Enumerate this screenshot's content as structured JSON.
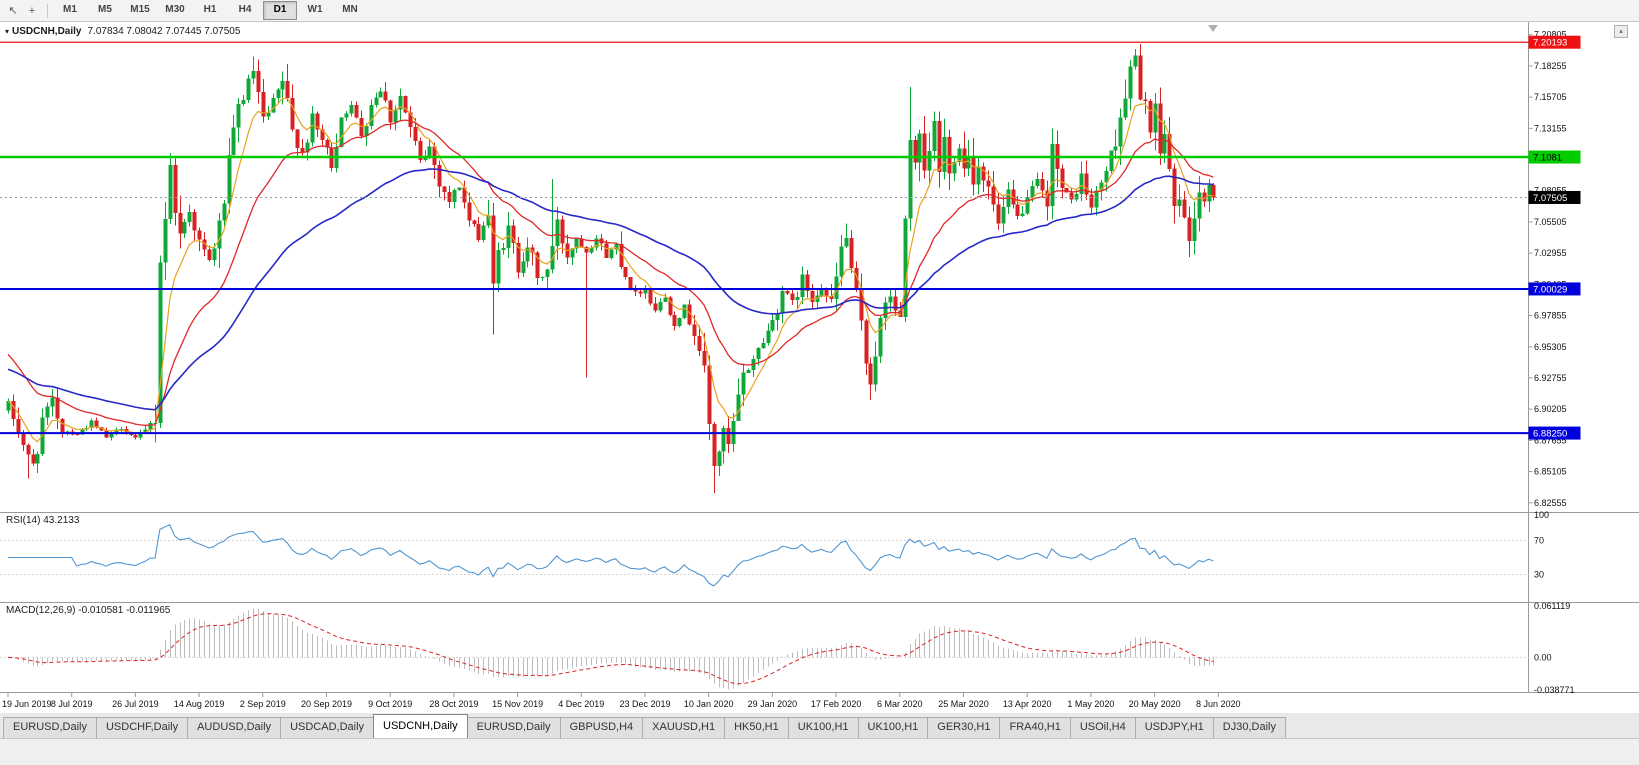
{
  "toolbar": {
    "icons": [
      {
        "name": "chart-cursor-icon",
        "glyph": "↖"
      },
      {
        "name": "crosshair-icon",
        "glyph": "+"
      }
    ],
    "timeframes": [
      "M1",
      "M5",
      "M15",
      "M30",
      "H1",
      "H4",
      "D1",
      "W1",
      "MN"
    ],
    "active_timeframe": "D1"
  },
  "chart": {
    "symbol_title": "USDCNH,Daily",
    "ohlc": "7.07834 7.08042 7.07445 7.07505",
    "menu_glyph": "▾",
    "scroll_glyph": "▴"
  },
  "rsi_panel": {
    "label": "RSI(14) 43.2133"
  },
  "macd_panel": {
    "label": "MACD(12,26,9) -0.010581 -0.011965"
  },
  "tabs": [
    {
      "label": "EURUSD,Daily",
      "active": false
    },
    {
      "label": "USDCHF,Daily",
      "active": false
    },
    {
      "label": "AUDUSD,Daily",
      "active": false
    },
    {
      "label": "USDCAD,Daily",
      "active": false
    },
    {
      "label": "USDCNH,Daily",
      "active": true
    },
    {
      "label": "EURUSD,Daily",
      "active": false
    },
    {
      "label": "GBPUSD,H4",
      "active": false
    },
    {
      "label": "XAUUSD,H1",
      "active": false
    },
    {
      "label": "HK50,H1",
      "active": false
    },
    {
      "label": "UK100,H1",
      "active": false
    },
    {
      "label": "UK100,H1",
      "active": false
    },
    {
      "label": "GER30,H1",
      "active": false
    },
    {
      "label": "FRA40,H1",
      "active": false
    },
    {
      "label": "USOil,H4",
      "active": false
    },
    {
      "label": "USDJPY,H1",
      "active": false
    },
    {
      "label": "DJ30,Daily",
      "active": false
    }
  ],
  "chart_data": {
    "type": "candlestick",
    "symbol": "USDCNH",
    "timeframe": "Daily",
    "num_candles": 247,
    "candles_per_tick": 13,
    "x_tick_labels": [
      "19 Jun 2019",
      "8 Jul 2019",
      "26 Jul 2019",
      "14 Aug 2019",
      "2 Sep 2019",
      "20 Sep 2019",
      "9 Oct 2019",
      "28 Oct 2019",
      "15 Nov 2019",
      "4 Dec 2019",
      "23 Dec 2019",
      "10 Jan 2020",
      "29 Jan 2020",
      "17 Feb 2020",
      "6 Mar 2020",
      "25 Mar 2020",
      "13 Apr 2020",
      "1 May 2020",
      "20 May 2020",
      "8 Jun 2020"
    ],
    "ylim": [
      6.818,
      7.216
    ],
    "price_axis": {
      "labels": [
        "7.20805",
        "7.18255",
        "7.15705",
        "7.13155",
        "7.10605",
        "7.08055",
        "7.05505",
        "7.02955",
        "7.00405",
        "6.97855",
        "6.95305",
        "6.92755",
        "6.90205",
        "6.87655",
        "6.85105",
        "6.82555"
      ]
    },
    "last_close": 7.07505,
    "close_waypoints": [
      [
        0,
        6.906
      ],
      [
        2,
        6.885
      ],
      [
        4,
        6.862
      ],
      [
        5,
        6.856
      ],
      [
        7,
        6.893
      ],
      [
        9,
        6.908
      ],
      [
        11,
        6.885
      ],
      [
        14,
        6.882
      ],
      [
        17,
        6.891
      ],
      [
        20,
        6.879
      ],
      [
        23,
        6.887
      ],
      [
        26,
        6.878
      ],
      [
        28,
        6.884
      ],
      [
        30,
        6.896
      ],
      [
        31,
        7.025
      ],
      [
        32,
        7.06
      ],
      [
        33,
        7.098
      ],
      [
        34,
        7.07
      ],
      [
        35,
        7.042
      ],
      [
        37,
        7.068
      ],
      [
        39,
        7.038
      ],
      [
        41,
        7.022
      ],
      [
        43,
        7.05
      ],
      [
        45,
        7.1
      ],
      [
        47,
        7.148
      ],
      [
        49,
        7.168
      ],
      [
        50,
        7.178
      ],
      [
        52,
        7.135
      ],
      [
        54,
        7.152
      ],
      [
        56,
        7.17
      ],
      [
        58,
        7.128
      ],
      [
        60,
        7.112
      ],
      [
        62,
        7.138
      ],
      [
        64,
        7.122
      ],
      [
        66,
        7.104
      ],
      [
        68,
        7.142
      ],
      [
        70,
        7.148
      ],
      [
        72,
        7.128
      ],
      [
        74,
        7.152
      ],
      [
        76,
        7.165
      ],
      [
        78,
        7.14
      ],
      [
        80,
        7.158
      ],
      [
        82,
        7.13
      ],
      [
        84,
        7.103
      ],
      [
        86,
        7.116
      ],
      [
        88,
        7.088
      ],
      [
        90,
        7.072
      ],
      [
        92,
        7.086
      ],
      [
        94,
        7.056
      ],
      [
        96,
        7.044
      ],
      [
        98,
        7.062
      ],
      [
        99,
        6.998
      ],
      [
        100,
        7.028
      ],
      [
        102,
        7.048
      ],
      [
        104,
        7.018
      ],
      [
        106,
        7.038
      ],
      [
        108,
        7.006
      ],
      [
        110,
        7.016
      ],
      [
        112,
        7.052
      ],
      [
        114,
        7.028
      ],
      [
        116,
        7.042
      ],
      [
        118,
        7.032
      ],
      [
        120,
        7.042
      ],
      [
        122,
        7.028
      ],
      [
        124,
        7.036
      ],
      [
        126,
        7.012
      ],
      [
        128,
        6.996
      ],
      [
        130,
        7.0
      ],
      [
        132,
        6.984
      ],
      [
        134,
        6.994
      ],
      [
        136,
        6.974
      ],
      [
        138,
        6.984
      ],
      [
        140,
        6.966
      ],
      [
        141,
        6.952
      ],
      [
        142,
        6.93
      ],
      [
        143,
        6.888
      ],
      [
        144,
        6.858
      ],
      [
        145,
        6.868
      ],
      [
        146,
        6.882
      ],
      [
        147,
        6.87
      ],
      [
        148,
        6.888
      ],
      [
        150,
        6.928
      ],
      [
        152,
        6.944
      ],
      [
        154,
        6.958
      ],
      [
        156,
        6.974
      ],
      [
        158,
        7.0
      ],
      [
        160,
        6.988
      ],
      [
        162,
        7.008
      ],
      [
        164,
        6.992
      ],
      [
        166,
        7.003
      ],
      [
        168,
        6.986
      ],
      [
        170,
        7.032
      ],
      [
        171,
        7.042
      ],
      [
        173,
        6.992
      ],
      [
        175,
        6.942
      ],
      [
        176,
        6.928
      ],
      [
        178,
        6.972
      ],
      [
        180,
        6.996
      ],
      [
        182,
        6.972
      ],
      [
        183,
        7.058
      ],
      [
        184,
        7.128
      ],
      [
        185,
        7.095
      ],
      [
        186,
        7.122
      ],
      [
        187,
        7.088
      ],
      [
        188,
        7.112
      ],
      [
        189,
        7.132
      ],
      [
        190,
        7.098
      ],
      [
        191,
        7.122
      ],
      [
        192,
        7.092
      ],
      [
        193,
        7.112
      ],
      [
        194,
        7.124
      ],
      [
        195,
        7.098
      ],
      [
        196,
        7.116
      ],
      [
        197,
        7.086
      ],
      [
        198,
        7.108
      ],
      [
        199,
        7.092
      ],
      [
        200,
        7.082
      ],
      [
        202,
        7.052
      ],
      [
        204,
        7.076
      ],
      [
        206,
        7.058
      ],
      [
        208,
        7.072
      ],
      [
        210,
        7.088
      ],
      [
        212,
        7.062
      ],
      [
        213,
        7.128
      ],
      [
        214,
        7.098
      ],
      [
        215,
        7.082
      ],
      [
        217,
        7.072
      ],
      [
        219,
        7.092
      ],
      [
        221,
        7.066
      ],
      [
        223,
        7.088
      ],
      [
        225,
        7.108
      ],
      [
        227,
        7.142
      ],
      [
        229,
        7.178
      ],
      [
        230,
        7.188
      ],
      [
        231,
        7.148
      ],
      [
        232,
        7.162
      ],
      [
        233,
        7.128
      ],
      [
        234,
        7.142
      ],
      [
        235,
        7.112
      ],
      [
        236,
        7.128
      ],
      [
        237,
        7.098
      ],
      [
        238,
        7.062
      ],
      [
        239,
        7.082
      ],
      [
        240,
        7.052
      ],
      [
        241,
        7.042
      ],
      [
        242,
        7.062
      ],
      [
        243,
        7.078
      ],
      [
        244,
        7.062
      ],
      [
        245,
        7.082
      ],
      [
        246,
        7.075
      ]
    ],
    "wick_overrides": [
      [
        4,
        "low",
        6.8455
      ],
      [
        99,
        "low",
        6.963
      ],
      [
        111,
        "high",
        7.09
      ],
      [
        118,
        "low",
        6.928
      ],
      [
        144,
        "low",
        6.8335
      ],
      [
        184,
        "high",
        7.1655
      ],
      [
        230,
        "high",
        7.1965
      ]
    ],
    "levels": [
      {
        "price": 7.20193,
        "label": "7.20193",
        "color": "#ee1111",
        "text": "#ffffff",
        "width": 1.2,
        "dash": ""
      },
      {
        "price": 7.1081,
        "label": "7.1081",
        "color": "#00cc00",
        "text": "#000000",
        "width": 2.5,
        "dash": ""
      },
      {
        "price": 7.07505,
        "label": "7.07505",
        "color": "#9a9a9a",
        "tag": "#000000",
        "text": "#ffffff",
        "width": 1,
        "dash": "2,3"
      },
      {
        "price": 7.00029,
        "label": "7.00029",
        "color": "#0000dd",
        "text": "#ffffff",
        "width": 2,
        "dash": ""
      },
      {
        "price": 6.8825,
        "label": "6.88250",
        "color": "#0000dd",
        "text": "#ffffff",
        "width": 2,
        "dash": ""
      }
    ],
    "colors": {
      "up": "#0fa838",
      "down": "#d62222",
      "ma_fast": "#e8a21c",
      "ma_mid": "#e02828",
      "ma_slow": "#2828c8",
      "rsi": "#5296d2",
      "macd_bar": "#bdbdbd",
      "macd_signal": "#dd2020"
    },
    "ma_periods": {
      "fast": 7,
      "mid": 22,
      "slow": 55
    },
    "rsi_period": 14,
    "macd_params": [
      12,
      26,
      9
    ],
    "rsi_axis": {
      "labels": [
        "100",
        "70",
        "30"
      ],
      "values": [
        100,
        70,
        30
      ],
      "guides": [
        70,
        30
      ]
    },
    "macd_axis": {
      "labels": [
        "0.061119",
        "0.00",
        "-0.038771"
      ],
      "max": 0.061119,
      "min": -0.038771
    }
  }
}
